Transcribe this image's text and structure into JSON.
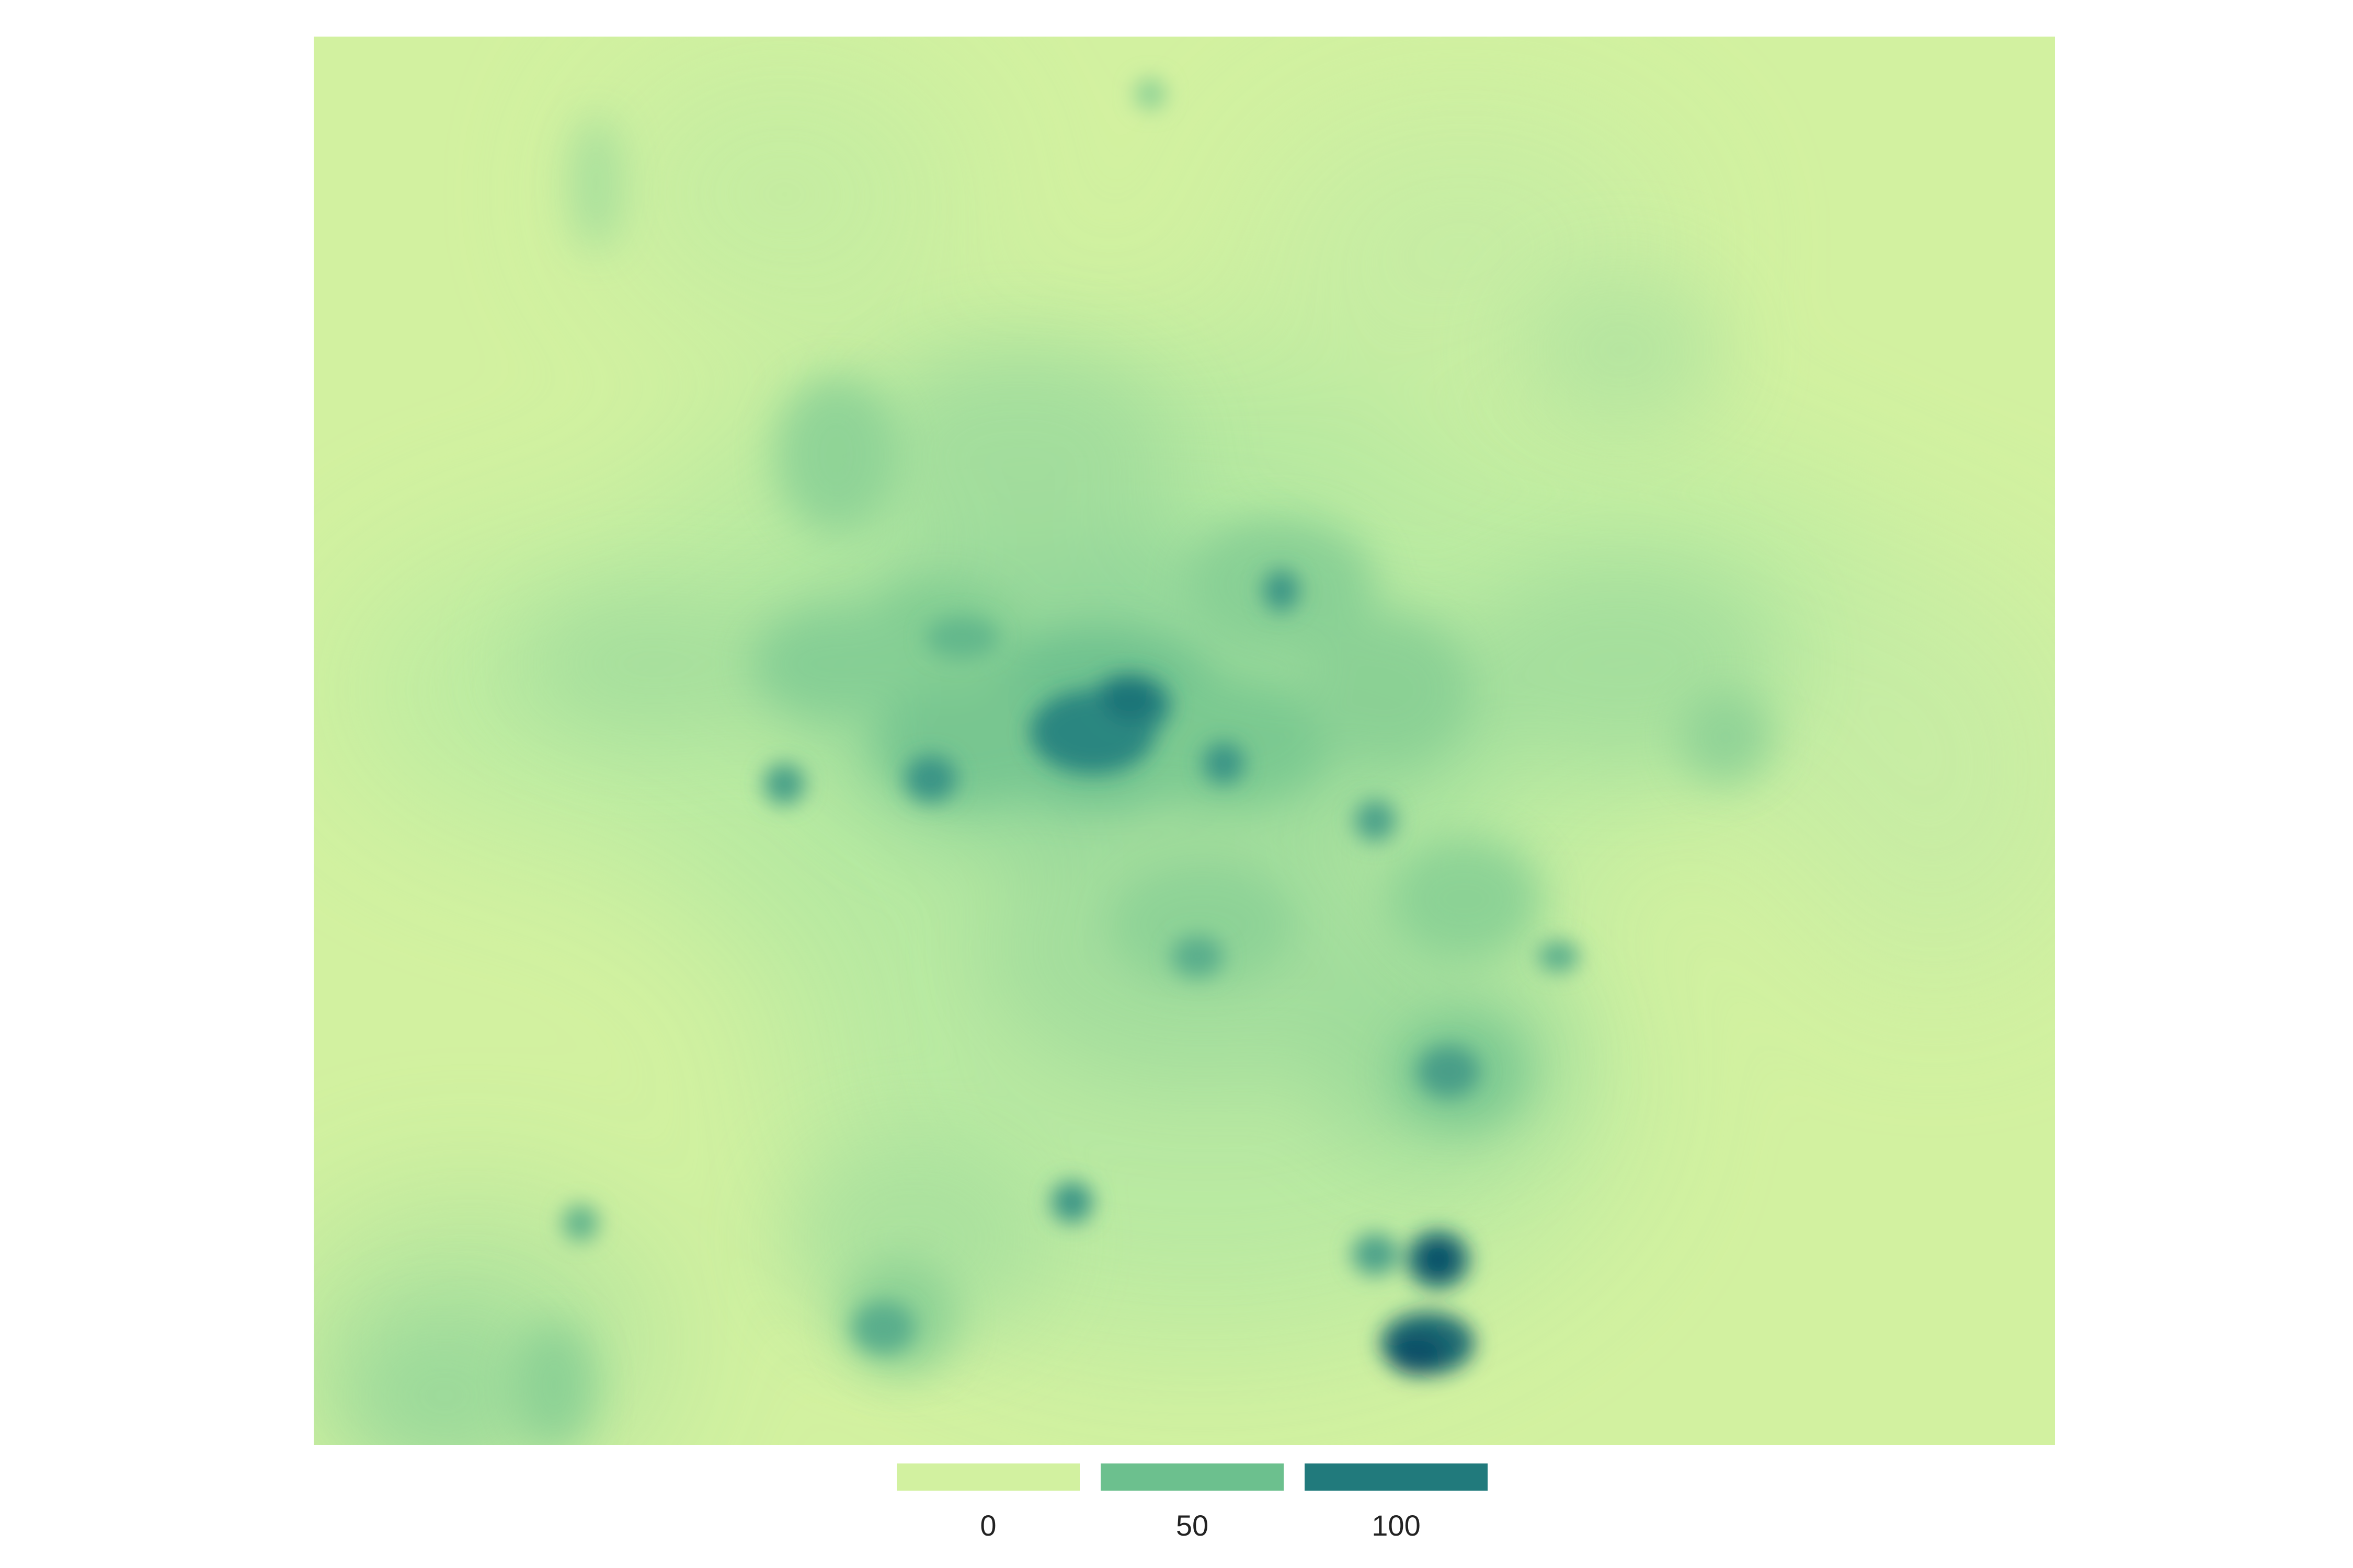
{
  "map": {
    "base_color": "#d2f1a0",
    "palette": [
      "#d2f1a0",
      "#aee6a0",
      "#6cc08e",
      "#3e9c90",
      "#217a7c",
      "#0e5068"
    ]
  },
  "legend": {
    "items": [
      {
        "label": "0",
        "color": "#d2f1a0"
      },
      {
        "label": "50",
        "color": "#6cc08e"
      },
      {
        "label": "100",
        "color": "#217a7c"
      }
    ]
  }
}
